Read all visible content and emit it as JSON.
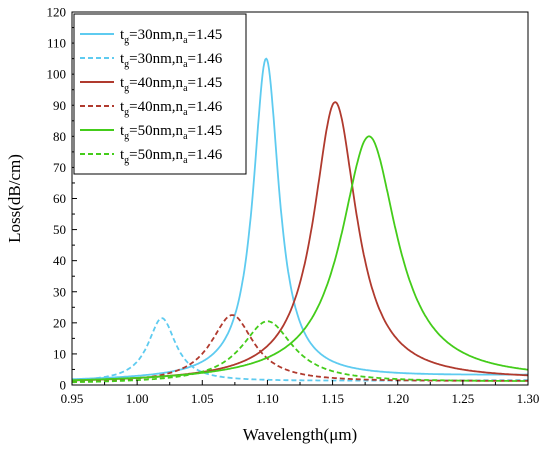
{
  "chart_data": {
    "type": "line",
    "xlabel": "Wavelength(μm)",
    "ylabel": "Loss(dB/cm)",
    "xlim": [
      0.95,
      1.3
    ],
    "ylim": [
      0,
      120
    ],
    "x_ticks": [
      "0.95",
      "1.00",
      "1.05",
      "1.10",
      "1.15",
      "1.20",
      "1.25",
      "1.30"
    ],
    "y_ticks": [
      "0",
      "10",
      "20",
      "30",
      "40",
      "50",
      "60",
      "70",
      "80",
      "90",
      "100",
      "110",
      "120"
    ],
    "grid": false,
    "legend_position": "top-left",
    "series": [
      {
        "name_parts": [
          "t",
          "g",
          "=30nm,n",
          "a",
          "=1.45"
        ],
        "color": "#5ecbf0",
        "dash": "solid",
        "peak_x": 1.099,
        "peak_y": 105,
        "half_width": 0.012,
        "baseline_start": 1.2,
        "baseline_end": 3.0
      },
      {
        "name_parts": [
          "t",
          "g",
          "=30nm,n",
          "a",
          "=1.46"
        ],
        "color": "#5ecbf0",
        "dash": "dashed",
        "peak_x": 1.019,
        "peak_y": 21.5,
        "half_width": 0.013,
        "baseline_start": 0.9,
        "baseline_end": 1.5
      },
      {
        "name_parts": [
          "t",
          "g",
          "=40nm,n",
          "a",
          "=1.45"
        ],
        "color": "#b03a2e",
        "dash": "solid",
        "peak_x": 1.152,
        "peak_y": 91,
        "half_width": 0.02,
        "baseline_start": 0.6,
        "baseline_end": 1.5
      },
      {
        "name_parts": [
          "t",
          "g",
          "=40nm,n",
          "a",
          "=1.46"
        ],
        "color": "#b03a2e",
        "dash": "dashed",
        "peak_x": 1.073,
        "peak_y": 22.5,
        "half_width": 0.02,
        "baseline_start": 0.5,
        "baseline_end": 1.2
      },
      {
        "name_parts": [
          "t",
          "g",
          "=50nm,n",
          "a",
          "=1.45"
        ],
        "color": "#44cc1a",
        "dash": "solid",
        "peak_x": 1.178,
        "peak_y": 80,
        "half_width": 0.026,
        "baseline_start": 0.5,
        "baseline_end": 1.5
      },
      {
        "name_parts": [
          "t",
          "g",
          "=50nm,n",
          "a",
          "=1.46"
        ],
        "color": "#44cc1a",
        "dash": "dashed",
        "peak_x": 1.1,
        "peak_y": 20.5,
        "half_width": 0.024,
        "baseline_start": 0.4,
        "baseline_end": 1.0
      }
    ]
  }
}
